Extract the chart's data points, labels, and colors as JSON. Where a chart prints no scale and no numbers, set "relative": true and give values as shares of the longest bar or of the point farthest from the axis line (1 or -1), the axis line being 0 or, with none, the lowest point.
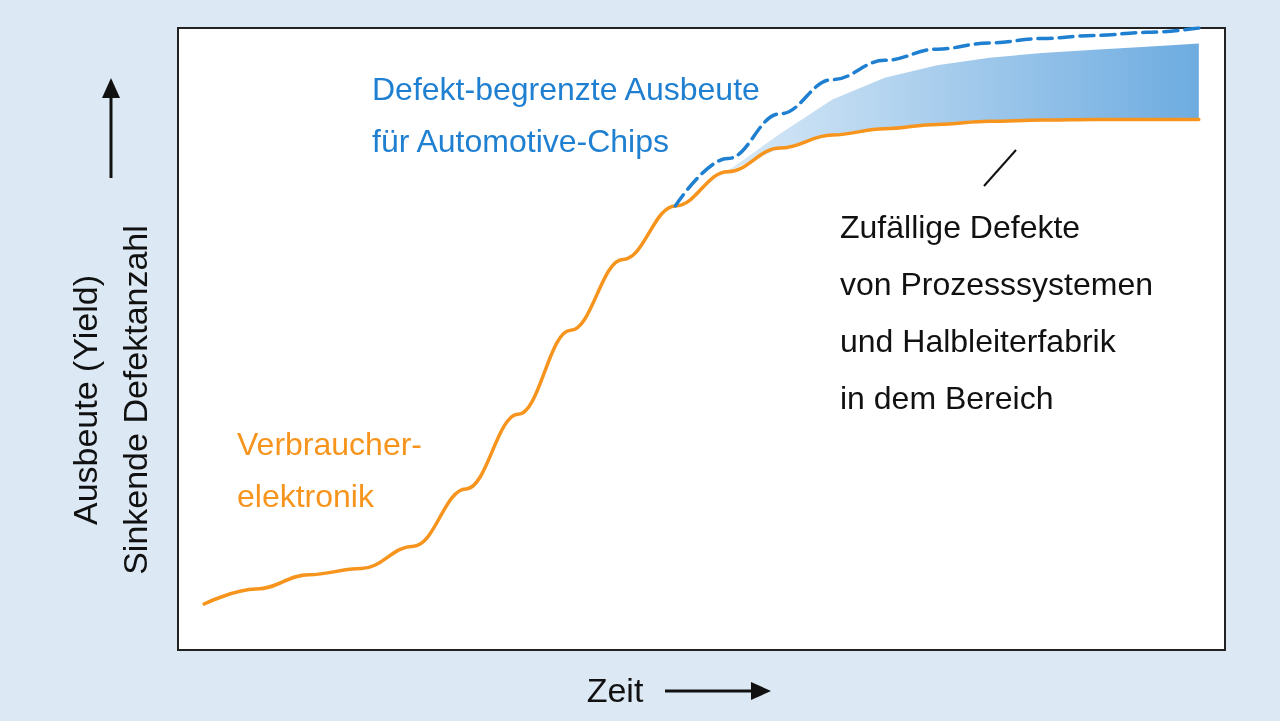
{
  "chart_data": {
    "type": "line",
    "relative": true,
    "xlabel": "Zeit",
    "ylabel": "Ausbeute (Yield)\nSinkende Defektanzahl",
    "legend": false,
    "grid": false,
    "marker": "none",
    "categories": [
      null,
      null,
      null,
      null,
      null,
      null,
      null,
      null,
      null,
      null,
      null,
      null,
      null,
      null,
      null,
      null,
      null,
      null,
      null,
      null
    ],
    "series": [
      {
        "name": "Verbraucher-\nelektronik",
        "color": "#f7941d",
        "line_style": "solid",
        "values": [
          0.074,
          0.098,
          0.121,
          0.131,
          0.167,
          0.259,
          0.379,
          0.514,
          0.628,
          0.714,
          0.769,
          0.807,
          0.828,
          0.838,
          0.845,
          0.85,
          0.852,
          0.853,
          0.853,
          0.853
        ]
      },
      {
        "name": "Defekt-begrenzte Ausbeute\nfür Automotive-Chips",
        "color": "#1f7fd0",
        "line_style": "dashed",
        "values": [
          null,
          null,
          null,
          null,
          null,
          null,
          null,
          null,
          null,
          0.714,
          0.79,
          0.862,
          0.917,
          0.948,
          0.966,
          0.976,
          0.983,
          0.988,
          0.993,
          1
        ],
        "lower": [
          null,
          null,
          null,
          null,
          null,
          null,
          null,
          null,
          null,
          0.714,
          0.769,
          0.807,
          0.828,
          0.838,
          0.845,
          0.85,
          0.852,
          0.853,
          0.853,
          0.853
        ],
        "upper": [
          null,
          null,
          null,
          null,
          null,
          null,
          null,
          null,
          null,
          0.714,
          0.77,
          0.83,
          0.885,
          0.92,
          0.94,
          0.952,
          0.96,
          0.965,
          0.97,
          0.975
        ]
      }
    ],
    "annotations": [
      "Zufällige Defekte\nvon Prozesssystemen\nund Halbleiterfabrik\nin dem Bereich"
    ]
  }
}
